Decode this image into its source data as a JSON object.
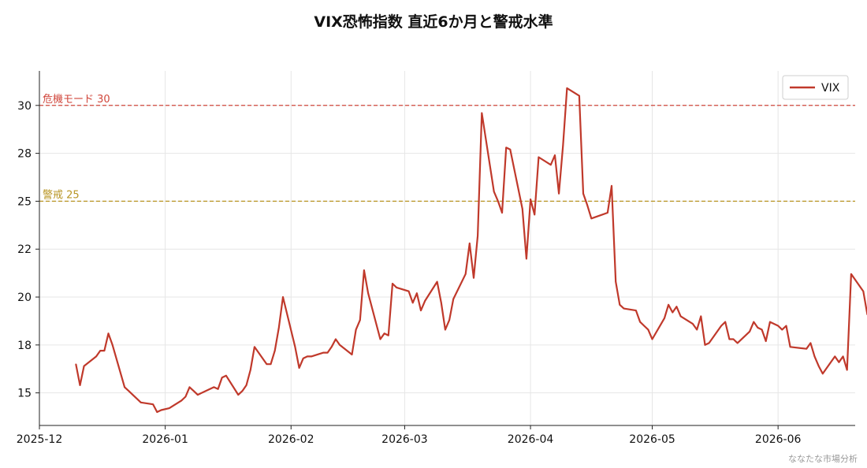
{
  "chart_data": {
    "type": "line",
    "title": "VIX恐怖指数 直近6か月と警戒水準",
    "xlabel": "",
    "ylabel": "",
    "x_range": [
      "2025-12-01",
      "2026-06-20"
    ],
    "ylim": [
      13.3,
      31.8
    ],
    "grid": true,
    "legend_position": "top-right",
    "x_ticks": [
      {
        "date": "2025-12-01",
        "label": "2025-12"
      },
      {
        "date": "2026-01-01",
        "label": "2026-01"
      },
      {
        "date": "2026-02-01",
        "label": "2026-02"
      },
      {
        "date": "2026-03-01",
        "label": "2026-03"
      },
      {
        "date": "2026-04-01",
        "label": "2026-04"
      },
      {
        "date": "2026-05-01",
        "label": "2026-05"
      },
      {
        "date": "2026-06-01",
        "label": "2026-06"
      }
    ],
    "y_ticks": [
      {
        "value": 15,
        "label": "15"
      },
      {
        "value": 17.5,
        "label": "18"
      },
      {
        "value": 20,
        "label": "20"
      },
      {
        "value": 22.5,
        "label": "22"
      },
      {
        "value": 25,
        "label": "25"
      },
      {
        "value": 27.5,
        "label": "28"
      },
      {
        "value": 30,
        "label": "30"
      }
    ],
    "reference_lines": [
      {
        "value": 30,
        "label": "危機モード 30",
        "color": "#d0463b"
      },
      {
        "value": 25,
        "label": "警戒 25",
        "color": "#b89524"
      }
    ],
    "series": [
      {
        "name": "VIX",
        "color": "#c0392b",
        "points": [
          [
            "2025-12-10",
            16.5
          ],
          [
            "2025-12-11",
            15.4
          ],
          [
            "2025-12-12",
            16.4
          ],
          [
            "2025-12-15",
            16.9
          ],
          [
            "2025-12-16",
            17.2
          ],
          [
            "2025-12-17",
            17.2
          ],
          [
            "2025-12-18",
            18.1
          ],
          [
            "2025-12-19",
            17.5
          ],
          [
            "2025-12-22",
            15.3
          ],
          [
            "2025-12-23",
            15.1
          ],
          [
            "2025-12-24",
            14.9
          ],
          [
            "2025-12-26",
            14.5
          ],
          [
            "2025-12-29",
            14.4
          ],
          [
            "2025-12-30",
            14.0
          ],
          [
            "2025-12-31",
            14.1
          ],
          [
            "2026-01-02",
            14.2
          ],
          [
            "2026-01-05",
            14.6
          ],
          [
            "2026-01-06",
            14.8
          ],
          [
            "2026-01-07",
            15.3
          ],
          [
            "2026-01-08",
            15.1
          ],
          [
            "2026-01-09",
            14.9
          ],
          [
            "2026-01-12",
            15.2
          ],
          [
            "2026-01-13",
            15.3
          ],
          [
            "2026-01-14",
            15.2
          ],
          [
            "2026-01-15",
            15.8
          ],
          [
            "2026-01-16",
            15.9
          ],
          [
            "2026-01-19",
            14.9
          ],
          [
            "2026-01-20",
            15.1
          ],
          [
            "2026-01-21",
            15.4
          ],
          [
            "2026-01-22",
            16.2
          ],
          [
            "2026-01-23",
            17.4
          ],
          [
            "2026-01-26",
            16.5
          ],
          [
            "2026-01-27",
            16.5
          ],
          [
            "2026-01-28",
            17.2
          ],
          [
            "2026-01-29",
            18.4
          ],
          [
            "2026-01-30",
            20.0
          ],
          [
            "2026-02-02",
            17.4
          ],
          [
            "2026-02-03",
            16.3
          ],
          [
            "2026-02-04",
            16.8
          ],
          [
            "2026-02-05",
            16.9
          ],
          [
            "2026-02-06",
            16.9
          ],
          [
            "2026-02-09",
            17.1
          ],
          [
            "2026-02-10",
            17.1
          ],
          [
            "2026-02-11",
            17.4
          ],
          [
            "2026-02-12",
            17.8
          ],
          [
            "2026-02-13",
            17.5
          ],
          [
            "2026-02-16",
            17.0
          ],
          [
            "2026-02-17",
            18.3
          ],
          [
            "2026-02-18",
            18.8
          ],
          [
            "2026-02-19",
            21.4
          ],
          [
            "2026-02-20",
            20.2
          ],
          [
            "2026-02-23",
            17.8
          ],
          [
            "2026-02-24",
            18.1
          ],
          [
            "2026-02-25",
            18.0
          ],
          [
            "2026-02-26",
            20.7
          ],
          [
            "2026-02-27",
            20.5
          ],
          [
            "2026-03-02",
            20.3
          ],
          [
            "2026-03-03",
            19.7
          ],
          [
            "2026-03-04",
            20.2
          ],
          [
            "2026-03-05",
            19.3
          ],
          [
            "2026-03-06",
            19.8
          ],
          [
            "2026-03-09",
            20.8
          ],
          [
            "2026-03-10",
            19.7
          ],
          [
            "2026-03-11",
            18.3
          ],
          [
            "2026-03-12",
            18.8
          ],
          [
            "2026-03-13",
            19.9
          ],
          [
            "2026-03-16",
            21.2
          ],
          [
            "2026-03-17",
            22.8
          ],
          [
            "2026-03-18",
            21.0
          ],
          [
            "2026-03-19",
            23.2
          ],
          [
            "2026-03-20",
            29.6
          ],
          [
            "2026-03-23",
            25.5
          ],
          [
            "2026-03-24",
            25.0
          ],
          [
            "2026-03-25",
            24.4
          ],
          [
            "2026-03-26",
            27.8
          ],
          [
            "2026-03-27",
            27.7
          ],
          [
            "2026-03-30",
            24.6
          ],
          [
            "2026-03-31",
            22.0
          ],
          [
            "2026-04-01",
            25.1
          ],
          [
            "2026-04-02",
            24.3
          ],
          [
            "2026-04-03",
            27.3
          ],
          [
            "2026-04-06",
            26.9
          ],
          [
            "2026-04-07",
            27.4
          ],
          [
            "2026-04-08",
            25.4
          ],
          [
            "2026-04-09",
            27.9
          ],
          [
            "2026-04-10",
            30.9
          ],
          [
            "2026-04-13",
            30.5
          ],
          [
            "2026-04-14",
            25.4
          ],
          [
            "2026-04-15",
            24.8
          ],
          [
            "2026-04-16",
            24.1
          ],
          [
            "2026-04-20",
            24.4
          ],
          [
            "2026-04-21",
            25.8
          ],
          [
            "2026-04-22",
            20.8
          ],
          [
            "2026-04-23",
            19.6
          ],
          [
            "2026-04-24",
            19.4
          ],
          [
            "2026-04-27",
            19.3
          ],
          [
            "2026-04-28",
            18.7
          ],
          [
            "2026-04-29",
            18.5
          ],
          [
            "2026-04-30",
            18.3
          ],
          [
            "2026-05-01",
            17.8
          ],
          [
            "2026-05-04",
            18.9
          ],
          [
            "2026-05-05",
            19.6
          ],
          [
            "2026-05-06",
            19.2
          ],
          [
            "2026-05-07",
            19.5
          ],
          [
            "2026-05-08",
            19.0
          ],
          [
            "2026-05-11",
            18.6
          ],
          [
            "2026-05-12",
            18.3
          ],
          [
            "2026-05-13",
            19.0
          ],
          [
            "2026-05-14",
            17.5
          ],
          [
            "2026-05-15",
            17.6
          ],
          [
            "2026-05-18",
            18.5
          ],
          [
            "2026-05-19",
            18.7
          ],
          [
            "2026-05-20",
            17.8
          ],
          [
            "2026-05-21",
            17.8
          ],
          [
            "2026-05-22",
            17.6
          ],
          [
            "2026-05-25",
            18.2
          ],
          [
            "2026-05-26",
            18.7
          ],
          [
            "2026-05-27",
            18.4
          ],
          [
            "2026-05-28",
            18.3
          ],
          [
            "2026-05-29",
            17.7
          ],
          [
            "2026-05-30",
            18.7
          ],
          [
            "2026-06-01",
            18.5
          ],
          [
            "2026-06-02",
            18.3
          ],
          [
            "2026-06-03",
            18.5
          ],
          [
            "2026-06-04",
            17.4
          ],
          [
            "2026-06-08",
            17.3
          ],
          [
            "2026-06-09",
            17.6
          ],
          [
            "2026-06-10",
            16.9
          ],
          [
            "2026-06-11",
            16.4
          ],
          [
            "2026-06-12",
            16.0
          ],
          [
            "2026-06-15",
            16.9
          ],
          [
            "2026-06-16",
            16.6
          ],
          [
            "2026-06-17",
            16.9
          ],
          [
            "2026-06-18",
            16.2
          ],
          [
            "2026-06-19",
            21.2
          ],
          [
            "2026-06-22",
            20.3
          ],
          [
            "2026-06-23",
            19.1
          ],
          [
            "2026-06-24",
            20.9
          ]
        ]
      }
    ],
    "footer_note": "ななたな市場分析"
  }
}
